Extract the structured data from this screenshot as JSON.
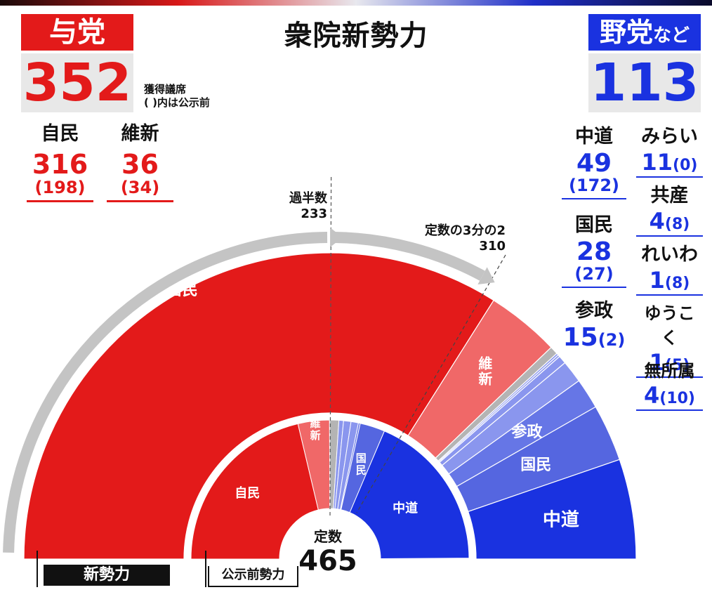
{
  "title": "衆院新勢力",
  "government": {
    "label": "与党",
    "total": "352"
  },
  "opposition": {
    "label": "野党",
    "label_suffix": "など",
    "total": "113"
  },
  "note": {
    "line1": "獲得議席",
    "line2": "( )内は公示前"
  },
  "gov_parties": [
    {
      "name": "自民",
      "seats": "316",
      "before": "(198)"
    },
    {
      "name": "維新",
      "seats": "36",
      "before": "(34)"
    }
  ],
  "opp_left": [
    {
      "name": "中道",
      "seats": "49",
      "before": "(172)"
    },
    {
      "name": "国民",
      "seats": "28",
      "before": "(27)"
    },
    {
      "name": "参政",
      "seats": "15",
      "before": "(2)"
    }
  ],
  "opp_right": [
    {
      "name": "みらい",
      "seats": "11",
      "before": "(0)"
    },
    {
      "name": "共産",
      "seats": "4",
      "before": "(8)"
    },
    {
      "name": "れいわ",
      "seats": "1",
      "before": "(8)"
    },
    {
      "name": "ゆうこく",
      "seats": "1",
      "before": "(5)"
    },
    {
      "name": "無所属",
      "seats": "4",
      "before": "(10)"
    }
  ],
  "annotations": {
    "majority_label": "過半数",
    "majority_value": "233",
    "twothirds_label": "定数の3分の2",
    "twothirds_value": "310",
    "total_label": "定数",
    "total_value": "465",
    "new_label": "新勢力",
    "before_label": "公示前勢力"
  },
  "colors": {
    "ldp": "#e31a1a",
    "ishin": "#f06868",
    "cdp": "#1a32e0",
    "dpfp": "#5566e0",
    "sanseito": "#6676e6",
    "minor": "#8a96ee",
    "other": "#b4b4b4",
    "bg": "#ffffff"
  },
  "chart_data": [
    {
      "type": "pie",
      "title": "新勢力",
      "total": 465,
      "categories": [
        "自民",
        "維新",
        "無所属",
        "ゆうこく",
        "れいわ",
        "共産",
        "みらい",
        "参政",
        "国民",
        "中道"
      ],
      "values": [
        316,
        36,
        4,
        1,
        1,
        4,
        11,
        15,
        28,
        49
      ]
    },
    {
      "type": "pie",
      "title": "公示前勢力",
      "total": 465,
      "categories": [
        "自民",
        "維新",
        "無所属",
        "ゆうこく",
        "れいわ",
        "共産",
        "みらい",
        "参政",
        "国民",
        "中道"
      ],
      "values": [
        198,
        34,
        10,
        5,
        8,
        8,
        0,
        2,
        27,
        172
      ]
    }
  ]
}
